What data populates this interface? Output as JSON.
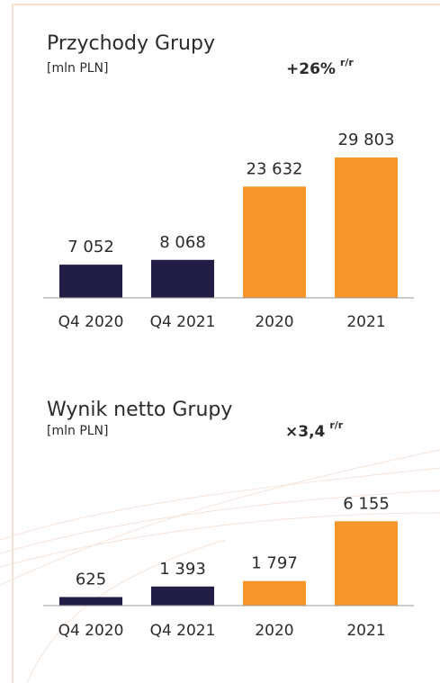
{
  "chart_data": [
    {
      "type": "bar",
      "title": "Przychody Grupy",
      "subtitle": "[mln PLN]",
      "annotation": {
        "text": "+26%",
        "suffix": "r/r"
      },
      "categories": [
        "Q4 2020",
        "Q4 2021",
        "2020",
        "2021"
      ],
      "values": [
        7052,
        8068,
        23632,
        29803
      ],
      "value_labels": [
        "7 052",
        "8 068",
        "23 632",
        "29 803"
      ],
      "colors": [
        "#221d45",
        "#221d45",
        "#f7962a",
        "#f7962a"
      ],
      "ylim": [
        0,
        30000
      ]
    },
    {
      "type": "bar",
      "title": "Wynik netto Grupy",
      "subtitle": "[mln PLN]",
      "annotation": {
        "text": "×3,4",
        "suffix": "r/r"
      },
      "categories": [
        "Q4 2020",
        "Q4 2021",
        "2020",
        "2021"
      ],
      "values": [
        625,
        1393,
        1797,
        6155
      ],
      "value_labels": [
        "625",
        "1 393",
        "1 797",
        "6 155"
      ],
      "colors": [
        "#221d45",
        "#221d45",
        "#f7962a",
        "#f7962a"
      ],
      "ylim": [
        0,
        6500
      ]
    }
  ]
}
